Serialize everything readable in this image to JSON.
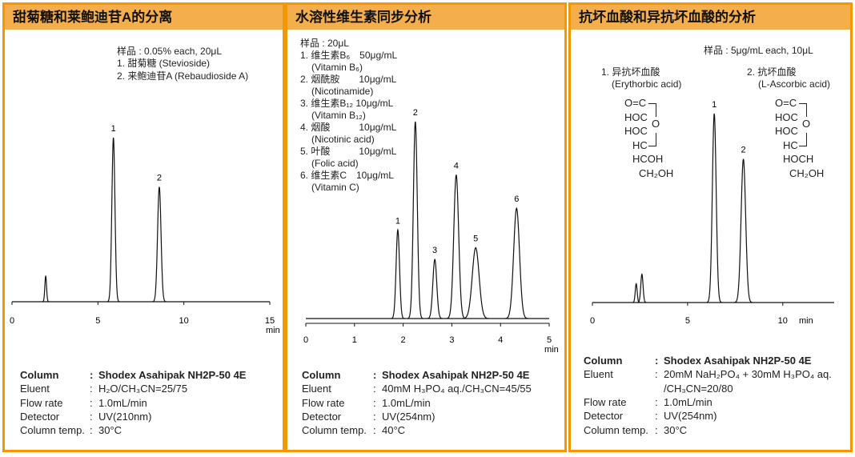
{
  "panels": [
    {
      "title": "甜菊糖和莱鲍迪苷A的分离",
      "sample": "样品 : 0.05% each, 20μL",
      "legend": [
        "1. 甜菊糖 (Stevioside)",
        "2. 来鲍迪苷A (Rebaudioside A)"
      ],
      "params": [
        [
          "Column",
          ":",
          "Shodex Asahipak NH2P-50 4E"
        ],
        [
          "Eluent",
          ":",
          "H₂O/CH₃CN=25/75"
        ],
        [
          "Flow rate",
          ":",
          "1.0mL/min"
        ],
        [
          "Detector",
          ":",
          "UV(210nm)"
        ],
        [
          "Column temp.",
          ":",
          "30°C"
        ]
      ]
    },
    {
      "title": "水溶性维生素同步分析",
      "sample": "样品 : 20μL",
      "legend": [
        "1. 维生素B₆　50μg/mL",
        "(Vitamin B₆)",
        "2. 烟酰胺　　10μg/mL",
        "(Nicotinamide)",
        "3. 维生素B₁₂ 10μg/mL",
        "(Vitamin B₁₂)",
        "4. 烟酸　　　10μg/mL",
        "(Nicotinic acid)",
        "5. 叶酸　　　10μg/mL",
        "(Folic acid)",
        "6. 维生素C　10μg/mL",
        "(Vitamin C)"
      ],
      "params": [
        [
          "Column",
          ":",
          "Shodex Asahipak NH2P-50 4E"
        ],
        [
          "Eluent",
          ":",
          "40mM H₃PO₄ aq./CH₃CN=45/55"
        ],
        [
          "Flow rate",
          ":",
          "1.0mL/min"
        ],
        [
          "Detector",
          ":",
          "UV(254nm)"
        ],
        [
          "Column temp.",
          ":",
          "40°C"
        ]
      ]
    },
    {
      "title": "抗坏血酸和异抗坏血酸的分析",
      "sample": "样品 : 5μg/mL each, 10μL",
      "legend": [
        "1. 异抗坏血酸",
        "(Erythorbic acid)",
        "2. 抗坏血酸",
        "(L-Ascorbic acid)"
      ],
      "structures": [
        [
          "O=C",
          "HOC",
          "HOC",
          "HC",
          "HCOH",
          "CH₂OH",
          "O"
        ],
        [
          "O=C",
          "HOC",
          "HOC",
          "HC",
          "HOCH",
          "CH₂OH",
          "O"
        ]
      ],
      "params": [
        [
          "Column",
          ":",
          "Shodex Asahipak NH2P-50 4E"
        ],
        [
          "Eluent",
          ":",
          "20mM NaH₂PO₄ + 30mM H₃PO₄ aq."
        ],
        [
          "",
          "",
          " /CH₃CN=20/80"
        ],
        [
          "Flow rate",
          ":",
          "1.0mL/min"
        ],
        [
          "Detector",
          ":",
          "UV(254nm)"
        ],
        [
          "Column temp.",
          ":",
          "30°C"
        ]
      ]
    }
  ],
  "colors": {
    "border": "#f39800",
    "header": "#f5ae4c",
    "trace": "#111111"
  },
  "chart_data": [
    {
      "type": "line",
      "xlabel": "min",
      "xlim": [
        0,
        15
      ],
      "xticks": [
        0,
        5,
        10,
        15
      ],
      "grid": false,
      "peaks": [
        {
          "label": "",
          "rt": 1.96,
          "height": 15.6,
          "width": 0.05
        },
        {
          "label": "1",
          "rt": 5.9,
          "height": 100,
          "width": 0.09
        },
        {
          "label": "2",
          "rt": 8.57,
          "height": 70,
          "width": 0.1
        }
      ]
    },
    {
      "type": "line",
      "xlabel": "min",
      "xlim": [
        0,
        5
      ],
      "xticks": [
        0,
        1,
        2,
        3,
        4,
        5
      ],
      "grid": false,
      "peaks": [
        {
          "label": "1",
          "rt": 1.89,
          "height": 45,
          "width": 0.035
        },
        {
          "label": "2",
          "rt": 2.25,
          "height": 100,
          "width": 0.04
        },
        {
          "label": "3",
          "rt": 2.65,
          "height": 30,
          "width": 0.04
        },
        {
          "label": "4",
          "rt": 3.09,
          "height": 73,
          "width": 0.05
        },
        {
          "label": "5",
          "rt": 3.49,
          "height": 36,
          "width": 0.07
        },
        {
          "label": "6",
          "rt": 4.33,
          "height": 56,
          "width": 0.06
        }
      ]
    },
    {
      "type": "line",
      "xlabel": "min",
      "xlim": [
        0,
        12.7
      ],
      "xticks": [
        0,
        5,
        10
      ],
      "grid": false,
      "peaks": [
        {
          "label": "",
          "rt": 2.3,
          "height": 10,
          "width": 0.05
        },
        {
          "label": "",
          "rt": 2.6,
          "height": 15,
          "width": 0.06
        },
        {
          "label": "1",
          "rt": 6.4,
          "height": 100,
          "width": 0.1
        },
        {
          "label": "2",
          "rt": 7.93,
          "height": 76,
          "width": 0.12
        }
      ]
    }
  ]
}
